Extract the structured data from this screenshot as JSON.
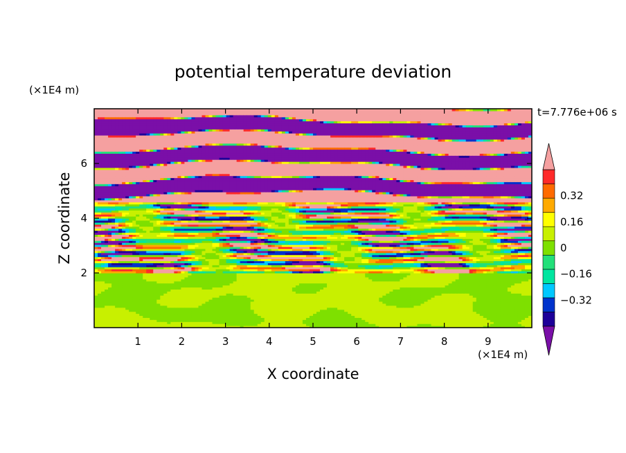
{
  "chart_data": {
    "type": "heatmap",
    "title": "potential temperature deviation",
    "xlabel": "X coordinate",
    "ylabel": "Z coordinate",
    "x_unit": "(×1E4 m)",
    "y_unit": "(×1E4 m)",
    "time_label": "t=7.776e+06 s",
    "xlim": [
      0,
      10
    ],
    "ylim": [
      0,
      8
    ],
    "x_ticks": [
      "1",
      "2",
      "3",
      "4",
      "5",
      "6",
      "7",
      "8",
      "9"
    ],
    "y_ticks": [
      "2",
      "4",
      "6"
    ],
    "colorbar": {
      "levels": [
        -0.48,
        -0.4,
        -0.32,
        -0.24,
        -0.16,
        -0.08,
        0,
        0.08,
        0.16,
        0.24,
        0.32,
        0.4,
        0.48
      ],
      "tick_labels": [
        "0.32",
        "0.16",
        "0",
        "−0.16",
        "−0.32"
      ],
      "tick_values": [
        0.32,
        0.16,
        0,
        -0.16,
        -0.32
      ],
      "colors": [
        "#7a0fa8",
        "#1d0099",
        "#0033cc",
        "#00c8ff",
        "#00e6a0",
        "#22e07a",
        "#7ee000",
        "#c8f000",
        "#ffff00",
        "#ffaa00",
        "#ff6a00",
        "#ff2a2a",
        "#f5a0a0"
      ],
      "extend": "both"
    },
    "bands": [
      {
        "zmin": 0,
        "zmax": 2,
        "note": "near-zero: alternating -0.08..0 and 0..0.08"
      },
      {
        "zmin": 2,
        "zmax": 4.5,
        "note": "fine-scale alternating layers -0.48..0.48"
      },
      {
        "zmin": 4.5,
        "zmax": 8,
        "note": "broad alternating layers < -0.4 and > 0.4"
      }
    ]
  }
}
